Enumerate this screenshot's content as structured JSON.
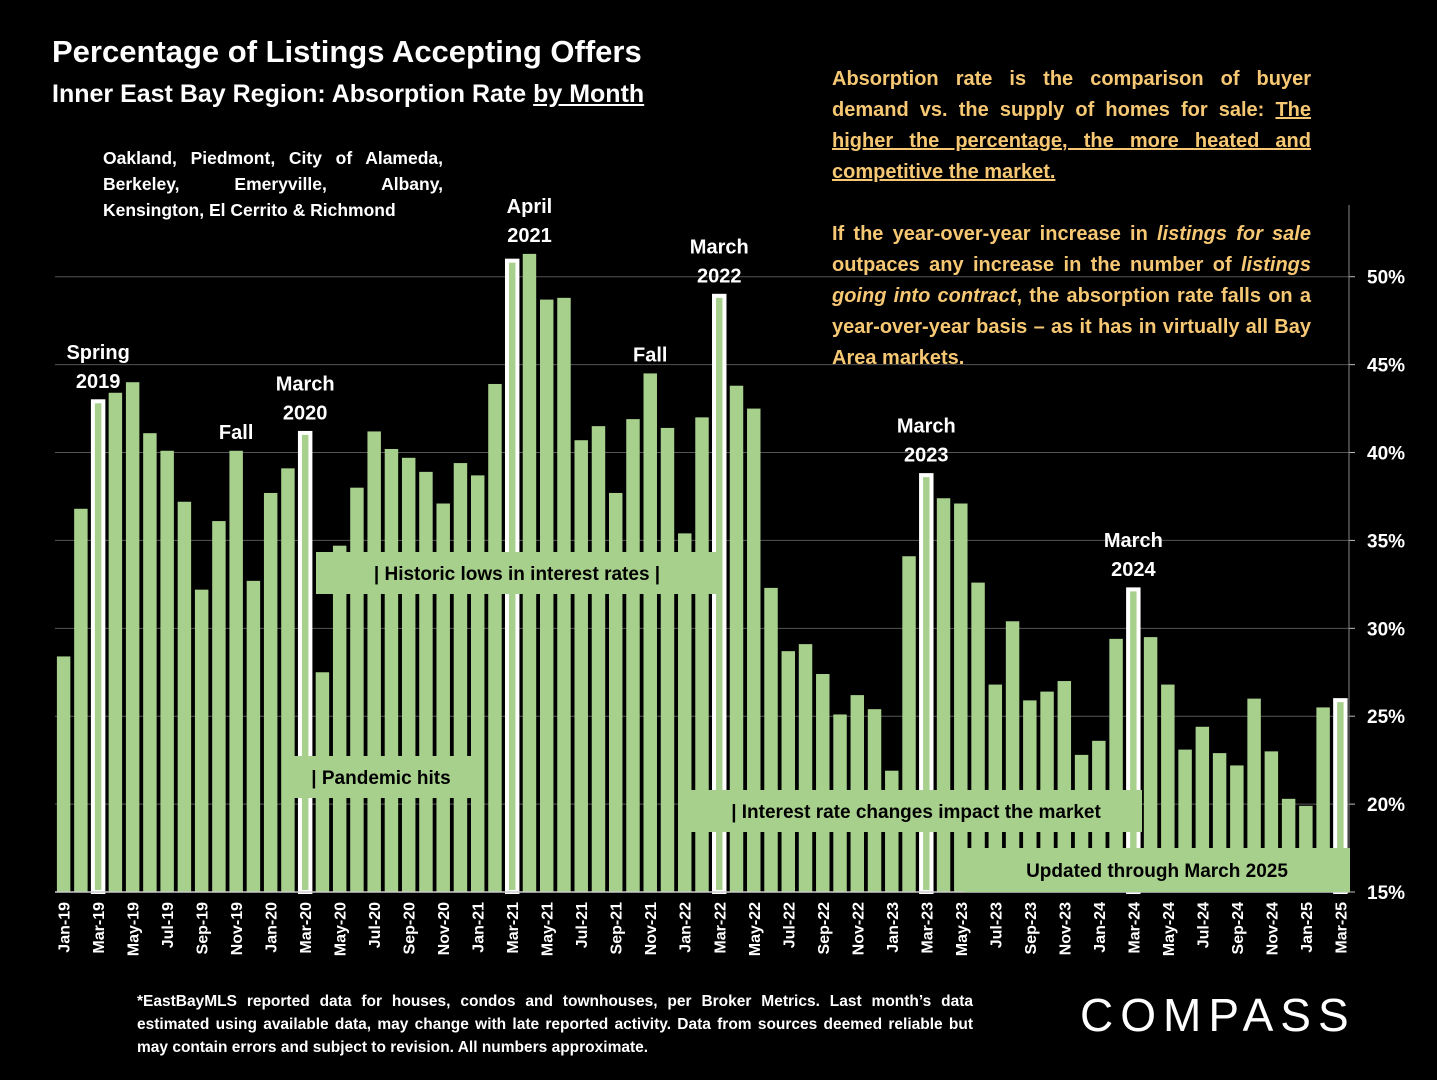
{
  "header": {
    "title": "Percentage of Listings Accepting Offers",
    "subtitle_prefix": "Inner East Bay Region:  Absorption Rate ",
    "subtitle_underlined": "by Month"
  },
  "region": {
    "line1": "Oakland, Piedmont, City of Alameda,",
    "line2": "Berkeley,      Emeryville,      Albany,",
    "line3": "Kensington, El Cerrito & Richmond"
  },
  "note": {
    "p1_plain": "Absorption rate is the comparison of buyer demand vs. the supply of homes for sale: ",
    "p1_underlined": "The higher the percentage, the more heated and competitive the market.",
    "p2_a": "If the year-over-year increase in ",
    "p2_b_italic": "listings for sale",
    "p2_c": " outpaces any increase in the number of ",
    "p2_d_italic": "listings going into contract",
    "p2_e": ", the absorption rate falls on a year-over-year basis – as it has in virtually all Bay Area markets."
  },
  "footer": "*EastBayMLS reported data for houses, condos and townhouses, per Broker Metrics. Last month’s data estimated using available data, may change with late reported activity. Data from sources deemed reliable but may contain errors and subject to revision. All numbers approximate.",
  "logo": "COMPASS",
  "colors": {
    "bar": "#a8d08d",
    "highlight": "#ffffff",
    "note": "#f7c873",
    "background": "#000000"
  },
  "chart_data": {
    "type": "bar",
    "title": "Percentage of Listings Accepting Offers",
    "ylim": [
      15,
      53
    ],
    "yticks": [
      15,
      20,
      25,
      30,
      35,
      40,
      45,
      50
    ],
    "ytick_suffix": "%",
    "grid": true,
    "y_axis_side": "right",
    "categories": [
      "Jan-19",
      "Feb-19",
      "Mar-19",
      "Apr-19",
      "May-19",
      "Jun-19",
      "Jul-19",
      "Aug-19",
      "Sep-19",
      "Oct-19",
      "Nov-19",
      "Dec-19",
      "Jan-20",
      "Feb-20",
      "Mar-20",
      "Apr-20",
      "May-20",
      "Jun-20",
      "Jul-20",
      "Aug-20",
      "Sep-20",
      "Oct-20",
      "Nov-20",
      "Dec-20",
      "Jan-21",
      "Feb-21",
      "Mar-21",
      "Apr-21",
      "May-21",
      "Jun-21",
      "Jul-21",
      "Aug-21",
      "Sep-21",
      "Oct-21",
      "Nov-21",
      "Dec-21",
      "Jan-22",
      "Feb-22",
      "Mar-22",
      "Apr-22",
      "May-22",
      "Jun-22",
      "Jul-22",
      "Aug-22",
      "Sep-22",
      "Oct-22",
      "Nov-22",
      "Dec-22",
      "Jan-23",
      "Feb-23",
      "Mar-23",
      "Apr-23",
      "May-23",
      "Jun-23",
      "Jul-23",
      "Aug-23",
      "Sep-23",
      "Oct-23",
      "Nov-23",
      "Dec-23",
      "Jan-24",
      "Feb-24",
      "Mar-24",
      "Apr-24",
      "May-24",
      "Jun-24",
      "Jul-24",
      "Aug-24",
      "Sep-24",
      "Oct-24",
      "Nov-24",
      "Dec-24",
      "Jan-25",
      "Feb-25",
      "Mar-25"
    ],
    "xtick_labels": [
      "Jan-19",
      "Mar-19",
      "May-19",
      "Jul-19",
      "Sep-19",
      "Nov-19",
      "Jan-20",
      "Mar-20",
      "May-20",
      "Jul-20",
      "Sep-20",
      "Nov-20",
      "Jan-21",
      "Mar-21",
      "May-21",
      "Jul-21",
      "Sep-21",
      "Nov-21",
      "Jan-22",
      "Mar-22",
      "May-22",
      "Jul-22",
      "Sep-22",
      "Nov-22",
      "Jan-23",
      "Mar-23",
      "May-23",
      "Jul-23",
      "Sep-23",
      "Nov-23",
      "Jan-24",
      "Mar-24",
      "May-24",
      "Jul-24",
      "Sep-24",
      "Nov-24",
      "Jan-25",
      "Mar-25"
    ],
    "values": [
      28.4,
      36.8,
      43.0,
      43.4,
      44.0,
      41.1,
      40.1,
      37.2,
      32.2,
      36.1,
      40.1,
      32.7,
      37.7,
      39.1,
      41.2,
      27.5,
      34.7,
      38.0,
      41.2,
      40.2,
      39.7,
      38.9,
      37.1,
      39.4,
      38.7,
      43.9,
      51.0,
      51.3,
      48.7,
      48.8,
      40.7,
      41.5,
      37.7,
      41.9,
      44.5,
      41.4,
      35.4,
      42.0,
      49.0,
      43.8,
      42.5,
      32.3,
      28.7,
      29.1,
      27.4,
      25.1,
      26.2,
      25.4,
      21.9,
      34.1,
      38.8,
      37.4,
      37.1,
      32.6,
      26.8,
      30.4,
      25.9,
      26.4,
      27.0,
      22.8,
      23.6,
      29.4,
      32.3,
      29.5,
      26.8,
      23.1,
      24.4,
      22.9,
      22.2,
      26.0,
      23.0,
      20.3,
      19.9,
      25.5,
      26.0
    ],
    "highlighted": [
      "Mar-19",
      "Mar-20",
      "Mar-21",
      "Mar-22",
      "Mar-23",
      "Mar-24",
      "Mar-25"
    ],
    "annotations": [
      {
        "text": [
          "Spring",
          "2019"
        ],
        "anchor": "Mar-19"
      },
      {
        "text": [
          "Fall"
        ],
        "anchor": "Nov-19"
      },
      {
        "text": [
          "March",
          "2020"
        ],
        "anchor": "Mar-20"
      },
      {
        "text": [
          "April",
          "2021"
        ],
        "anchor": "Apr-21"
      },
      {
        "text": [
          "Fall"
        ],
        "anchor": "Nov-21"
      },
      {
        "text": [
          "March",
          "2022"
        ],
        "anchor": "Mar-22"
      },
      {
        "text": [
          "March",
          "2023"
        ],
        "anchor": "Mar-23"
      },
      {
        "text": [
          "March",
          "2024"
        ],
        "anchor": "Mar-24"
      }
    ],
    "callouts": [
      {
        "text": "|     Historic lows in interest rates     |"
      },
      {
        "text": "| Pandemic hits"
      },
      {
        "text": "| Interest rate changes impact the market"
      },
      {
        "text": "Updated through March 2025"
      }
    ]
  }
}
